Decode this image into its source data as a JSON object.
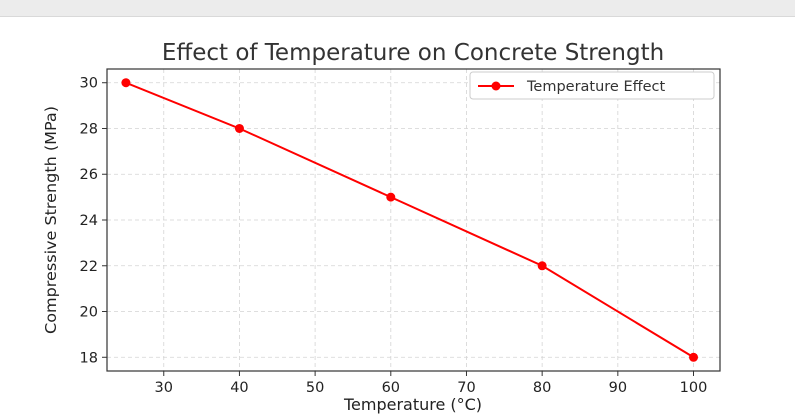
{
  "chart_data": {
    "type": "line",
    "title": "Effect of Temperature on Concrete Strength",
    "xlabel": "Temperature (°C)",
    "ylabel": "Compressive Strength (MPa)",
    "xlim": [
      22.5,
      103.5
    ],
    "ylim": [
      17.4,
      30.6
    ],
    "xticks": [
      30,
      40,
      50,
      60,
      70,
      80,
      90,
      100
    ],
    "yticks": [
      18,
      20,
      22,
      24,
      26,
      28,
      30
    ],
    "grid": true,
    "legend_position": "top-right",
    "series": [
      {
        "name": "Temperature Effect",
        "color": "#ff0000",
        "marker": "circle",
        "x": [
          25,
          40,
          60,
          80,
          100
        ],
        "y": [
          30,
          28,
          25,
          22,
          18
        ]
      }
    ]
  }
}
